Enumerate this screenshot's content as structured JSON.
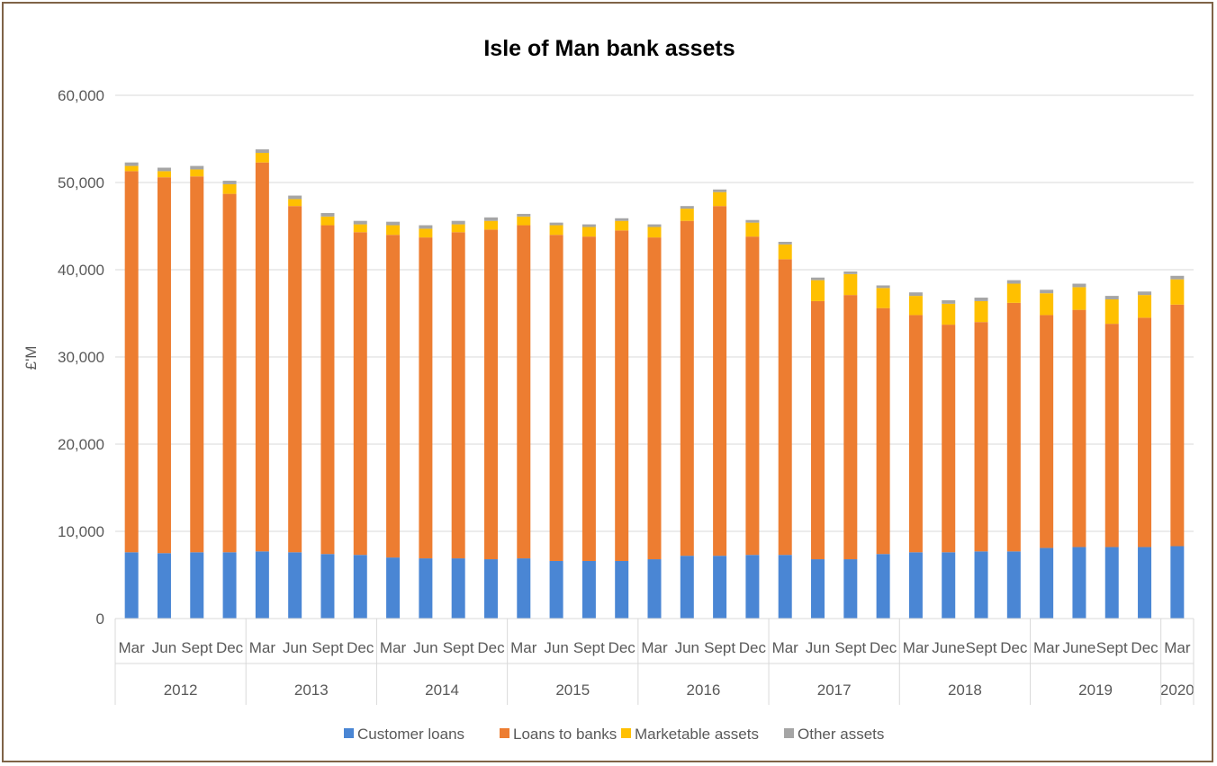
{
  "chart_data": {
    "type": "bar",
    "stacked": true,
    "title": "Isle of Man bank assets",
    "ylabel": "£'M",
    "xlabel": "",
    "ylim": [
      0,
      60000
    ],
    "yticks": [
      0,
      10000,
      20000,
      30000,
      40000,
      50000,
      60000
    ],
    "ytick_labels": [
      "0",
      "10,000",
      "20,000",
      "30,000",
      "40,000",
      "50,000",
      "60,000"
    ],
    "grid": true,
    "legend_position": "bottom",
    "categories": [
      "Mar",
      "Jun",
      "Sept",
      "Dec",
      "Mar",
      "Jun",
      "Sept",
      "Dec",
      "Mar",
      "Jun",
      "Sept",
      "Dec",
      "Mar",
      "Jun",
      "Sept",
      "Dec",
      "Mar",
      "Jun",
      "Sept",
      "Dec",
      "Mar",
      "Jun",
      "Sept",
      "Dec",
      "Mar",
      "June",
      "Sept",
      "Dec",
      "Mar",
      "June",
      "Sept",
      "Dec",
      "Mar"
    ],
    "groups": [
      {
        "label": "2012",
        "count": 4
      },
      {
        "label": "2013",
        "count": 4
      },
      {
        "label": "2014",
        "count": 4
      },
      {
        "label": "2015",
        "count": 4
      },
      {
        "label": "2016",
        "count": 4
      },
      {
        "label": "2017",
        "count": 4
      },
      {
        "label": "2018",
        "count": 4
      },
      {
        "label": "2019",
        "count": 4
      },
      {
        "label": "2020",
        "count": 1
      }
    ],
    "series": [
      {
        "name": "Customer loans",
        "color": "#4a86d4",
        "values": [
          7600,
          7500,
          7600,
          7600,
          7700,
          7600,
          7400,
          7300,
          7000,
          6900,
          6900,
          6800,
          6900,
          6600,
          6600,
          6600,
          6800,
          7200,
          7200,
          7300,
          7300,
          6800,
          6800,
          7400,
          7600,
          7600,
          7700,
          7700,
          8100,
          8200,
          8200,
          8200,
          8300
        ]
      },
      {
        "name": "Loans to banks",
        "color": "#ed7d31",
        "values": [
          43700,
          43100,
          43100,
          41100,
          44600,
          39700,
          37700,
          37000,
          37000,
          36800,
          37400,
          37800,
          38200,
          37400,
          37200,
          37900,
          36900,
          38400,
          40100,
          36500,
          33900,
          29600,
          30300,
          28200,
          27200,
          26100,
          26300,
          28500,
          26700,
          27200,
          25600,
          26300,
          27700
        ]
      },
      {
        "name": "Marketable assets",
        "color": "#ffc000",
        "values": [
          600,
          700,
          800,
          1100,
          1100,
          800,
          1000,
          900,
          1100,
          1000,
          900,
          1000,
          1000,
          1100,
          1100,
          1100,
          1200,
          1400,
          1600,
          1600,
          1700,
          2400,
          2400,
          2300,
          2200,
          2400,
          2400,
          2200,
          2500,
          2600,
          2800,
          2600,
          2900
        ]
      },
      {
        "name": "Other assets",
        "color": "#a5a5a5",
        "values": [
          400,
          400,
          400,
          400,
          400,
          400,
          400,
          400,
          400,
          400,
          400,
          400,
          300,
          300,
          300,
          300,
          300,
          300,
          300,
          300,
          300,
          300,
          300,
          300,
          400,
          400,
          400,
          400,
          400,
          400,
          400,
          400,
          400
        ]
      }
    ]
  }
}
